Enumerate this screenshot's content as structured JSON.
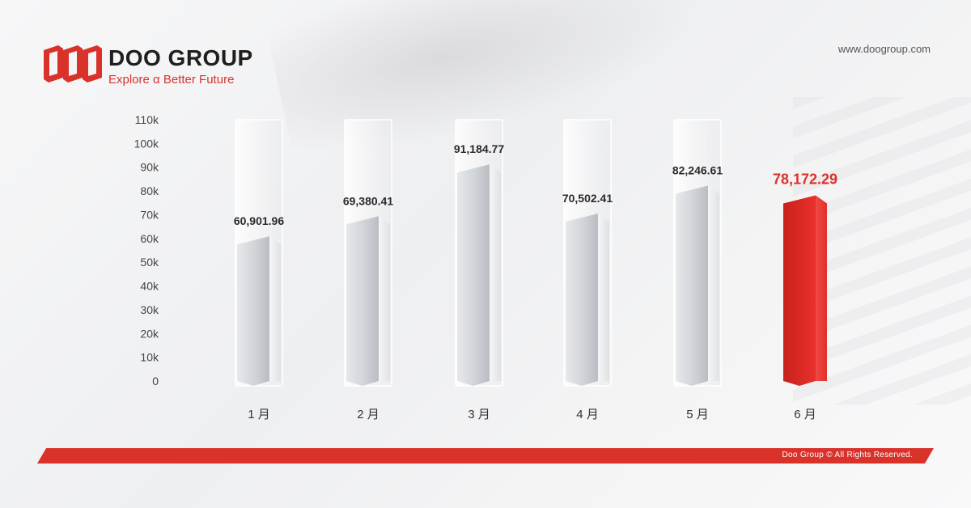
{
  "brand": {
    "name": "DOO GROUP",
    "tagline": "Explore α Better Future",
    "website": "www.doogroup.com",
    "copyright": "Doo Group © All Rights Reserved.",
    "accent_color": "#d9322b"
  },
  "chart_data": {
    "type": "bar",
    "title": "",
    "xlabel": "",
    "ylabel": "",
    "categories": [
      "1 月",
      "2 月",
      "3 月",
      "4 月",
      "5 月",
      "6 月"
    ],
    "values": [
      60901.96,
      69380.41,
      91184.77,
      70502.41,
      82246.61,
      78172.29
    ],
    "value_labels": [
      "60,901.96",
      "69,380.41",
      "91,184.77",
      "70,502.41",
      "82,246.61",
      "78,172.29"
    ],
    "highlight_index": 5,
    "ylim": [
      0,
      110000
    ],
    "yticks": [
      0,
      10000,
      20000,
      30000,
      40000,
      50000,
      60000,
      70000,
      80000,
      90000,
      100000,
      110000
    ],
    "ytick_labels": [
      "0",
      "10k",
      "20k",
      "30k",
      "40k",
      "50k",
      "60k",
      "70k",
      "80k",
      "90k",
      "100k",
      "110k"
    ],
    "grid": false,
    "bar_color": "#d7d9dc",
    "highlight_color": "#e0302b"
  }
}
